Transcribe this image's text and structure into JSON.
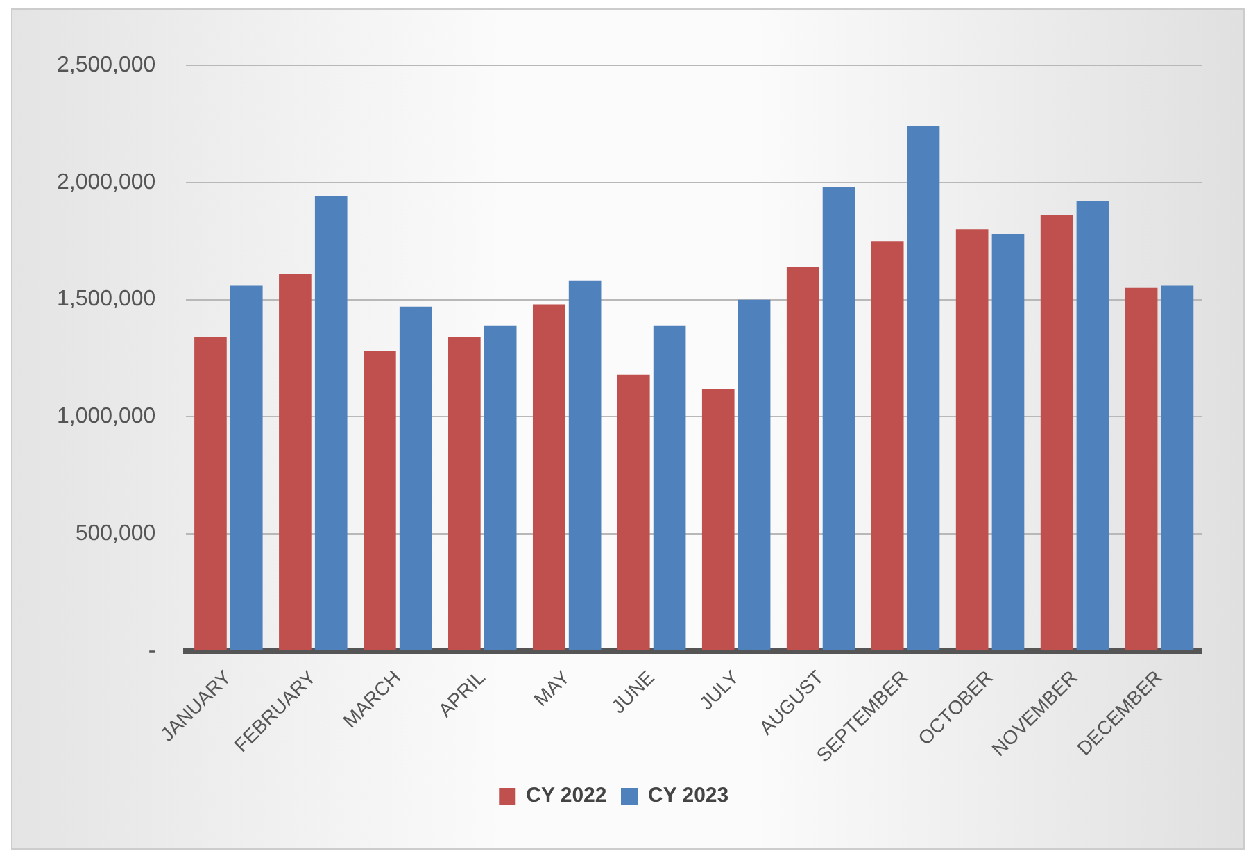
{
  "chart_data": {
    "type": "bar",
    "categories": [
      "JANUARY",
      "FEBRUARY",
      "MARCH",
      "APRIL",
      "MAY",
      "JUNE",
      "JULY",
      "AUGUST",
      "SEPTEMBER",
      "OCTOBER",
      "NOVEMBER",
      "DECEMBER"
    ],
    "series": [
      {
        "name": "CY 2022",
        "color": "#c0504d",
        "values": [
          1340000,
          1610000,
          1280000,
          1340000,
          1480000,
          1180000,
          1120000,
          1640000,
          1750000,
          1800000,
          1860000,
          1550000
        ]
      },
      {
        "name": "CY 2023",
        "color": "#4f81bd",
        "values": [
          1560000,
          1940000,
          1470000,
          1390000,
          1580000,
          1390000,
          1500000,
          1980000,
          2240000,
          1780000,
          1920000,
          1560000
        ]
      }
    ],
    "ylim": [
      0,
      2500000
    ],
    "yticks": [
      {
        "value": 0,
        "label": "-"
      },
      {
        "value": 500000,
        "label": "500,000"
      },
      {
        "value": 1000000,
        "label": "1,000,000"
      },
      {
        "value": 1500000,
        "label": "1,500,000"
      },
      {
        "value": 2000000,
        "label": "2,000,000"
      },
      {
        "value": 2500000,
        "label": "2,500,000"
      }
    ],
    "grid": "y",
    "legend": "bottom"
  }
}
